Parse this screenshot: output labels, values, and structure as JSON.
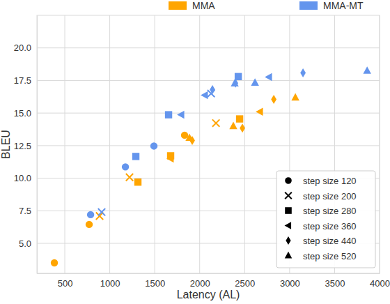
{
  "chart_data": {
    "type": "scatter",
    "x_label": "Latency (AL)",
    "y_label": "BLEU",
    "xlim": [
      190,
      4000
    ],
    "ylim": [
      2.7,
      22.5
    ],
    "xticks": [
      500,
      1000,
      1500,
      2000,
      2500,
      3000,
      3500,
      4000
    ],
    "yticks": [
      {
        "value": 5,
        "label": "5.0"
      },
      {
        "value": 7.5,
        "label": "7.5"
      },
      {
        "value": 10,
        "label": "10.0"
      },
      {
        "value": 12.5,
        "label": "12.5"
      },
      {
        "value": 15,
        "label": "15.0"
      },
      {
        "value": 17.5,
        "label": "17.5"
      },
      {
        "value": 20,
        "label": "20.0"
      }
    ],
    "grid": true,
    "legend": "lower right",
    "marker_legend": [
      {
        "label": "step size 120",
        "step_size": 120,
        "marker": "circle"
      },
      {
        "label": "step size 200",
        "step_size": 200,
        "marker": "x"
      },
      {
        "label": "step size 280",
        "step_size": 280,
        "marker": "square"
      },
      {
        "label": "step size 360",
        "step_size": 360,
        "marker": "triangle-left"
      },
      {
        "label": "step size 440",
        "step_size": 440,
        "marker": "diamond"
      },
      {
        "label": "step size 520",
        "step_size": 520,
        "marker": "triangle-up"
      }
    ],
    "series": [
      {
        "name": "MMA",
        "color": "#ffa500",
        "x": [
          384,
          771,
          1832,
          887,
          1220,
          2181,
          1313,
          1677,
          2444,
          1677,
          2669,
          1917,
          2475,
          2824,
          1886,
          2374,
          3064
        ],
        "values": [
          3.5,
          6.45,
          13.3,
          7.1,
          10.07,
          14.23,
          9.7,
          11.72,
          14.55,
          11.5,
          15.1,
          12.9,
          13.85,
          16.05,
          13.1,
          14.0,
          16.2
        ],
        "step_size": [
          120,
          120,
          120,
          200,
          200,
          200,
          280,
          280,
          280,
          360,
          360,
          440,
          440,
          440,
          520,
          520,
          520
        ]
      },
      {
        "name": "MMA-MT",
        "color": "#6495ed",
        "x": [
          787,
          1174,
          1491,
          910,
          2127,
          1290,
          1654,
          2429,
          1794,
          2057,
          2770,
          2142,
          2398,
          3149,
          2390,
          2615,
          3862
        ],
        "values": [
          7.2,
          10.87,
          12.47,
          7.4,
          16.5,
          11.67,
          14.87,
          17.8,
          14.87,
          16.37,
          17.76,
          16.8,
          17.3,
          18.08,
          17.28,
          17.33,
          18.25
        ],
        "step_size": [
          120,
          120,
          120,
          200,
          200,
          280,
          280,
          280,
          360,
          360,
          360,
          440,
          440,
          440,
          520,
          520,
          520
        ]
      }
    ]
  }
}
